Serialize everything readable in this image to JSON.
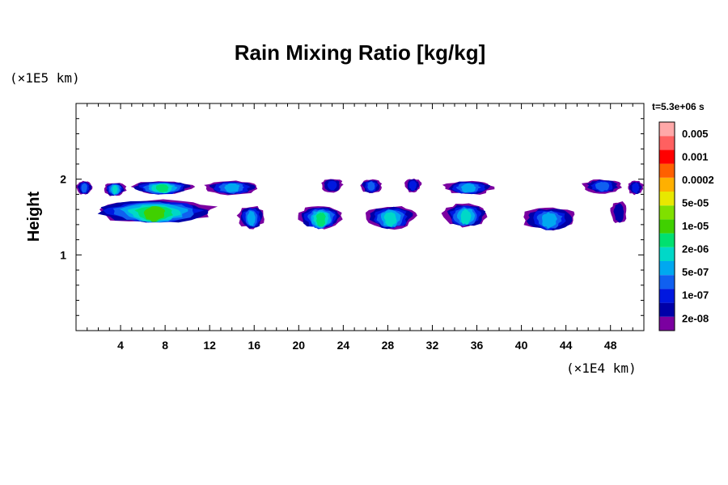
{
  "chart_data": {
    "type": "contour",
    "title": "Rain Mixing Ratio [kg/kg]",
    "ylabel": "Height",
    "x_unit": "(×1E4 km)",
    "y_unit": "(×1E5 km)",
    "time_label": "t=5.3e+06 s",
    "xlim": [
      0,
      51
    ],
    "ylim": [
      0,
      3
    ],
    "x_ticks": [
      "4",
      "8",
      "12",
      "16",
      "20",
      "24",
      "28",
      "32",
      "36",
      "40",
      "44",
      "48"
    ],
    "y_ticks": [
      "1",
      "2"
    ],
    "colorbar": {
      "levels": [
        "2e-08",
        "1e-07",
        "5e-07",
        "2e-06",
        "1e-05",
        "5e-05",
        "0.0002",
        "0.001",
        "0.005"
      ],
      "colors": [
        "#7b00a0",
        "#0000a8",
        "#0018e0",
        "#1060f0",
        "#00a8f0",
        "#00d8c8",
        "#00e070",
        "#40d000",
        "#80e000",
        "#e8e800",
        "#ffb000",
        "#ff6000",
        "#ff0000",
        "#ff6060",
        "#ffa8a8"
      ]
    },
    "cloud_layers": [
      {
        "name": "upper",
        "cells": [
          {
            "x": [
              0,
              1.5
            ],
            "y": 1.9,
            "peak": 3
          },
          {
            "x": [
              2.5,
              4.5
            ],
            "y": 1.88,
            "peak": 5
          },
          {
            "x": [
              5,
              10.5
            ],
            "y": 1.9,
            "peak": 6
          },
          {
            "x": [
              11.5,
              16.5
            ],
            "y": 1.9,
            "peak": 4
          },
          {
            "x": [
              22,
              24
            ],
            "y": 1.93,
            "peak": 2
          },
          {
            "x": [
              25.5,
              27.5
            ],
            "y": 1.92,
            "peak": 3
          },
          {
            "x": [
              29.5,
              31
            ],
            "y": 1.93,
            "peak": 2
          },
          {
            "x": [
              33,
              37.5
            ],
            "y": 1.9,
            "peak": 4
          },
          {
            "x": [
              45.5,
              49
            ],
            "y": 1.92,
            "peak": 3
          },
          {
            "x": [
              49.5,
              51
            ],
            "y": 1.9,
            "peak": 2
          }
        ]
      },
      {
        "name": "lower",
        "cells": [
          {
            "x": [
              1.5,
              12.5
            ],
            "y": 1.6,
            "peak": 7
          },
          {
            "x": [
              14.5,
              17
            ],
            "y": 1.52,
            "peak": 4
          },
          {
            "x": [
              20,
              24
            ],
            "y": 1.52,
            "peak": 6
          },
          {
            "x": [
              26,
              30.5
            ],
            "y": 1.52,
            "peak": 5
          },
          {
            "x": [
              33,
              37
            ],
            "y": 1.55,
            "peak": 5
          },
          {
            "x": [
              40,
              45
            ],
            "y": 1.5,
            "peak": 4
          },
          {
            "x": [
              48,
              49.5
            ],
            "y": 1.58,
            "peak": 1
          }
        ]
      }
    ]
  }
}
